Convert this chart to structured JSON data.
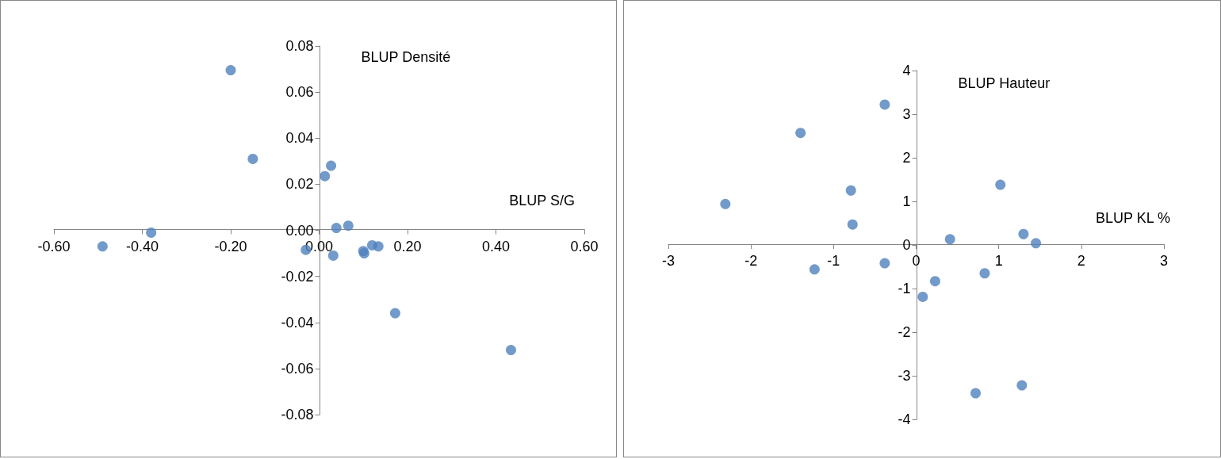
{
  "chart_data": [
    {
      "type": "scatter",
      "xlabel": "BLUP S/G",
      "ylabel": "BLUP Densité",
      "xlim": [
        -0.6,
        0.6
      ],
      "xticks": [
        {
          "value": -0.6,
          "label": "-0.60"
        },
        {
          "value": -0.4,
          "label": "-0.40"
        },
        {
          "value": -0.2,
          "label": "-0.20"
        },
        {
          "value": 0,
          "label": "0.00"
        },
        {
          "value": 0.2,
          "label": "0.20"
        },
        {
          "value": 0.4,
          "label": "0.40"
        },
        {
          "value": 0.6,
          "label": "0.60"
        }
      ],
      "ylim": [
        -0.08,
        0.08
      ],
      "yticks": [
        {
          "value": -0.08,
          "label": "-0.08"
        },
        {
          "value": -0.06,
          "label": "-0.06"
        },
        {
          "value": -0.04,
          "label": "-0.04"
        },
        {
          "value": -0.02,
          "label": "-0.02"
        },
        {
          "value": 0,
          "label": "0.00"
        },
        {
          "value": 0.02,
          "label": "0.02"
        },
        {
          "value": 0.04,
          "label": "0.04"
        },
        {
          "value": 0.06,
          "label": "0.06"
        },
        {
          "value": 0.08,
          "label": "0.08"
        }
      ],
      "marker": "circle",
      "series": [
        {
          "color": "#4f81bd",
          "x": [
            -0.2,
            -0.15,
            0.027,
            0.013,
            -0.38,
            -0.49,
            0.039,
            0.066,
            -0.03,
            0.032,
            0.1,
            0.102,
            0.12,
            0.134,
            0.172,
            0.434
          ],
          "values": [
            0.0695,
            0.031,
            0.028,
            0.0235,
            -0.001,
            -0.007,
            0.001,
            0.002,
            -0.0085,
            -0.011,
            -0.009,
            -0.01,
            -0.0065,
            -0.007,
            -0.036,
            -0.052
          ]
        }
      ]
    },
    {
      "type": "scatter",
      "xlabel": "BLUP KL %",
      "ylabel": "BLUP Hauteur",
      "xlim": [
        -3,
        3
      ],
      "xticks": [
        -3,
        -2,
        -1,
        0,
        1,
        2,
        3
      ],
      "ylim": [
        -4,
        4
      ],
      "yticks": [
        -4,
        -3,
        -2,
        -1,
        0,
        1,
        2,
        3,
        4
      ],
      "marker": "circle",
      "series": [
        {
          "color": "#4f81bd",
          "x": [
            -0.38,
            -1.4,
            -2.31,
            -0.79,
            -0.77,
            1.02,
            0.41,
            1.3,
            1.45,
            -1.23,
            -0.38,
            0.83,
            0.23,
            0.08,
            0.72,
            1.28
          ],
          "values": [
            3.22,
            2.57,
            0.94,
            1.25,
            0.47,
            1.38,
            0.13,
            0.25,
            0.04,
            -0.56,
            -0.42,
            -0.65,
            -0.83,
            -1.19,
            -3.4,
            -3.22
          ]
        }
      ]
    }
  ]
}
